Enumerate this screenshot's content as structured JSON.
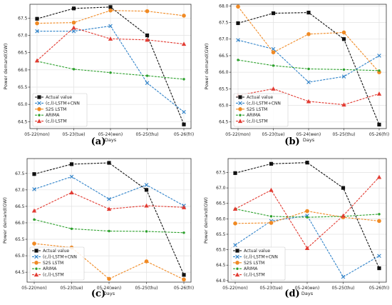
{
  "colors": {
    "actual": "#111111",
    "cnn": "#2f82c9",
    "s2s": "#f08a24",
    "arima": "#2ca02c",
    "lstm": "#e23b32"
  },
  "chart_data": [
    {
      "type": "line",
      "panel_label": "(a)",
      "xlabel": "Days",
      "ylabel": "Power demand(GW)",
      "categories": [
        "05-22(mon)",
        "05-23(tue)",
        "05-24(wen)",
        "05-25(thu)",
        "05-26(fri)"
      ],
      "ylim": [
        64.3,
        67.9
      ],
      "yticks": [
        "64.5",
        "65.0",
        "65.5",
        "66.0",
        "66.5",
        "67.0",
        "67.5"
      ],
      "legend_position": "lower-left",
      "grid": true,
      "series": [
        {
          "name": "Actual value",
          "values": [
            67.48,
            67.78,
            67.82,
            67.0,
            64.42
          ]
        },
        {
          "name": "(c,l)-LSTM+CNN",
          "values": [
            67.12,
            67.12,
            67.27,
            65.62,
            64.78
          ]
        },
        {
          "name": "S2S LSTM",
          "values": [
            67.35,
            67.37,
            67.72,
            67.7,
            67.57
          ]
        },
        {
          "name": "ARIMA",
          "values": [
            66.25,
            66.02,
            65.92,
            65.83,
            65.73
          ]
        },
        {
          "name": "(c,l)-LSTM",
          "values": [
            66.27,
            67.22,
            66.9,
            66.87,
            66.75
          ]
        }
      ]
    },
    {
      "type": "line",
      "panel_label": "(b)",
      "xlabel": "Days",
      "ylabel": "Power demand(GW)",
      "categories": [
        "05-22(mon)",
        "05-23(tue)",
        "05-24(wen)",
        "05-25(thu)",
        "05-26(fri)"
      ],
      "ylim": [
        64.3,
        68.05
      ],
      "yticks": [
        "64.5",
        "65.0",
        "65.5",
        "66.0",
        "66.5",
        "67.0",
        "67.5",
        "68.0"
      ],
      "legend_position": "lower-left",
      "grid": true,
      "series": [
        {
          "name": "Actual value",
          "values": [
            67.48,
            67.78,
            67.8,
            67.0,
            64.42
          ]
        },
        {
          "name": "(c,l)-LSTM+CNN",
          "values": [
            66.97,
            66.7,
            65.7,
            65.87,
            66.5
          ]
        },
        {
          "name": "S2S LSTM",
          "values": [
            67.98,
            66.6,
            67.15,
            67.2,
            66.0
          ]
        },
        {
          "name": "ARIMA",
          "values": [
            66.37,
            66.2,
            66.1,
            66.08,
            66.05
          ]
        },
        {
          "name": "(c,l)-LSTM",
          "values": [
            65.3,
            65.5,
            65.12,
            65.02,
            65.35
          ]
        }
      ]
    },
    {
      "type": "line",
      "panel_label": "(c)",
      "xlabel": "Days",
      "ylabel": "Power demand(GW)",
      "categories": [
        "05-22(mon)",
        "05-23(tue)",
        "05-24(wen)",
        "05-25(thu)",
        "05-26(fri)"
      ],
      "ylim": [
        64.2,
        67.95
      ],
      "yticks": [
        "64.5",
        "65.0",
        "65.5",
        "66.0",
        "66.5",
        "67.0",
        "67.5"
      ],
      "legend_position": "lower-left",
      "grid": true,
      "series": [
        {
          "name": "Actual value",
          "values": [
            67.48,
            67.78,
            67.82,
            67.0,
            64.42
          ]
        },
        {
          "name": "(c,l)-LSTM+CNN",
          "values": [
            67.02,
            67.4,
            66.72,
            67.15,
            66.52
          ]
        },
        {
          "name": "S2S LSTM",
          "values": [
            65.37,
            65.25,
            64.3,
            64.83,
            64.28
          ]
        },
        {
          "name": "ARIMA",
          "values": [
            66.1,
            65.82,
            65.75,
            65.74,
            65.7
          ]
        },
        {
          "name": "(c,l)-LSTM",
          "values": [
            66.37,
            66.92,
            66.42,
            66.52,
            66.47
          ]
        }
      ]
    },
    {
      "type": "line",
      "panel_label": "(d)",
      "xlabel": "Days",
      "ylabel": "Power demand(GW)",
      "categories": [
        "05-22(mon)",
        "05-23(tue)",
        "05-24(wen)",
        "05-25(thu)",
        "05-26(fri)"
      ],
      "ylim": [
        63.95,
        67.95
      ],
      "yticks": [
        "64.0",
        "64.5",
        "65.0",
        "65.5",
        "66.0",
        "66.5",
        "67.0",
        "67.5"
      ],
      "legend_position": "lower-left",
      "grid": true,
      "series": [
        {
          "name": "Actual value",
          "values": [
            67.48,
            67.78,
            67.82,
            67.0,
            64.4
          ]
        },
        {
          "name": "(c,l)-LSTM+CNN",
          "values": [
            65.15,
            65.93,
            66.1,
            64.12,
            64.8
          ]
        },
        {
          "name": "S2S LSTM",
          "values": [
            65.85,
            65.87,
            66.25,
            66.05,
            65.93
          ]
        },
        {
          "name": "ARIMA",
          "values": [
            66.32,
            66.08,
            66.05,
            66.08,
            66.15
          ]
        },
        {
          "name": "(c,l)-LSTM",
          "values": [
            66.32,
            66.93,
            65.05,
            66.1,
            67.35
          ]
        }
      ]
    }
  ]
}
